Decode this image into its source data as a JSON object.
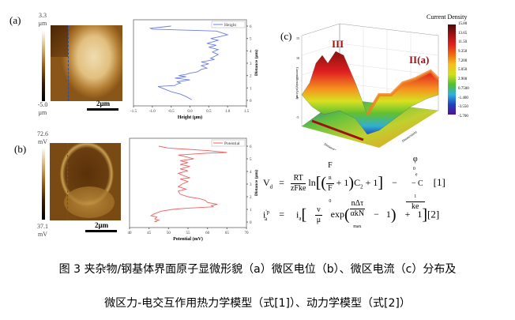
{
  "panel_a": {
    "label": "(a)",
    "cbar_max": "3.3",
    "cbar_min": "-5.0",
    "unit": "μm",
    "scale": "2μm",
    "profile_color": "#2b4fa8"
  },
  "panel_b": {
    "label": "(b)",
    "cbar_max": "72.6",
    "cbar_min": "37.1",
    "unit": "mV",
    "scale": "2μm",
    "profile_color": "#e02020"
  },
  "panel_c": {
    "label": "(c)",
    "title": "Current Density",
    "ylabel": "Current Density(nA/cm²)",
    "peak1": "III",
    "peak2": "II(a)",
    "cbar_ticks": [
      "15.80",
      "13.65",
      "11.50",
      "9.350",
      "7.200",
      "5.050",
      "2.900",
      "0.7500",
      "-1.400",
      "-3.550",
      "-5.700"
    ],
    "z_ticks": [
      "15",
      "10",
      "5",
      "0",
      "-5"
    ],
    "xlabel": "Distance(nm)",
    "ylabel2": "Distance(nm)"
  },
  "chart_data": [
    {
      "type": "line",
      "legend": "Height",
      "xlabel": "Height (μm)",
      "ylabel": "Distance (μm)",
      "xlim": [
        -1.5,
        1.5
      ],
      "ylim": [
        0,
        6
      ],
      "xticks": [
        "-1.5",
        "-1.0",
        "-0.5",
        "0.0",
        "0.5",
        "1.0",
        "1.5"
      ],
      "yticks": [
        "0",
        "1",
        "2",
        "3",
        "4",
        "5",
        "6"
      ],
      "color": "#6b7fe0",
      "points": [
        [
          -0.5,
          6
        ],
        [
          -1.05,
          5.82
        ],
        [
          -1.0,
          5.75
        ],
        [
          0.7,
          5.6
        ],
        [
          1.0,
          5.3
        ],
        [
          0.8,
          5.15
        ],
        [
          0.55,
          5.0
        ],
        [
          0.75,
          4.85
        ],
        [
          0.45,
          4.6
        ],
        [
          0.7,
          4.45
        ],
        [
          0.5,
          4.3
        ],
        [
          0.75,
          4.1
        ],
        [
          0.6,
          3.9
        ],
        [
          0.75,
          3.7
        ],
        [
          0.55,
          3.4
        ],
        [
          0.65,
          3.3
        ],
        [
          0.3,
          3.1
        ],
        [
          0.5,
          2.95
        ],
        [
          0.3,
          2.8
        ],
        [
          0.45,
          2.6
        ],
        [
          0.3,
          2.5
        ],
        [
          0.2,
          2.3
        ],
        [
          0.0,
          2.2
        ],
        [
          -0.1,
          2.1
        ],
        [
          -0.3,
          2.0
        ],
        [
          -0.1,
          1.9
        ],
        [
          -0.4,
          1.8
        ],
        [
          0.0,
          1.65
        ],
        [
          -0.35,
          1.5
        ],
        [
          -0.25,
          1.4
        ],
        [
          -0.35,
          1.3
        ],
        [
          -0.4,
          1.2
        ],
        [
          -0.85,
          1.12
        ],
        [
          -0.75,
          1.0
        ],
        [
          -0.5,
          0.7
        ],
        [
          -0.25,
          0.5
        ],
        [
          -0.1,
          0.3
        ],
        [
          0.05,
          0.05
        ]
      ]
    },
    {
      "type": "line",
      "legend": "Potential",
      "xlabel": "Potential (mV)",
      "ylabel": "Distance (μm)",
      "xlim": [
        40,
        70
      ],
      "ylim": [
        0,
        6
      ],
      "xticks": [
        "40",
        "45",
        "50",
        "55",
        "60",
        "65",
        "70"
      ],
      "yticks": [
        "0",
        "1",
        "2",
        "3",
        "4",
        "5",
        "6"
      ],
      "color": "#f06060",
      "points": [
        [
          47.5,
          6
        ],
        [
          50,
          5.85
        ],
        [
          55,
          5.75
        ],
        [
          60,
          5.65
        ],
        [
          65,
          5.5
        ],
        [
          60,
          5.45
        ],
        [
          52.5,
          5.3
        ],
        [
          54,
          5.2
        ],
        [
          56.5,
          5.0
        ],
        [
          53,
          4.85
        ],
        [
          55,
          4.7
        ],
        [
          53,
          4.55
        ],
        [
          55.5,
          4.4
        ],
        [
          53,
          4.2
        ],
        [
          55,
          4.05
        ],
        [
          52.5,
          3.85
        ],
        [
          54,
          3.65
        ],
        [
          55.5,
          3.5
        ],
        [
          53,
          3.4
        ],
        [
          55,
          3.2
        ],
        [
          53.5,
          3.0
        ],
        [
          52.5,
          2.8
        ],
        [
          54.5,
          2.6
        ],
        [
          52.5,
          2.45
        ],
        [
          53,
          2.2
        ],
        [
          55,
          2.0
        ],
        [
          58,
          1.85
        ],
        [
          59.5,
          1.7
        ],
        [
          60,
          1.55
        ],
        [
          62.5,
          1.4
        ],
        [
          61,
          1.3
        ],
        [
          61.5,
          1.2
        ],
        [
          55,
          1.1
        ],
        [
          51,
          1.0
        ],
        [
          48,
          0.85
        ],
        [
          46,
          0.6
        ],
        [
          45.5,
          0.5
        ],
        [
          47,
          0.4
        ],
        [
          46.5,
          0.25
        ],
        [
          47.5,
          0.15
        ],
        [
          46.5,
          0.05
        ],
        [
          47,
          0
        ]
      ]
    }
  ],
  "equations": {
    "eq1": {
      "lhs": "V",
      "lhs_sub": "d",
      "eq": "=",
      "f1_num": "RT",
      "f1_den": "zFke",
      "ln": "ln",
      "fr_num": "F",
      "fr_num_sub": "R",
      "fr_den": "F",
      "fr_den_sub": "0",
      "plus1": "+ 1",
      "c2": "C",
      "c2_sub": "2",
      "plus2": "+ 1",
      "minus": "−",
      "f3_num": "φ",
      "f3_sup": "0",
      "f3_sub": "e",
      "f3_rest": "  − C",
      "f3_rest_sub": "1",
      "f3_den": "ke",
      "tag": "[1]"
    },
    "eq2": {
      "lhs": "i",
      "lhs_sup": "'p",
      "lhs_sub": "a",
      "eq": "=",
      "ia": "i",
      "ia_sub": "a",
      "nu": "ν",
      "mu": "μ",
      "exp": "exp",
      "f_num": "nΔτ",
      "f_den": "αkN",
      "f_den_sub": "max",
      "minus1": "−   1",
      "plus1": "+   1",
      "tag": "[2]"
    }
  },
  "caption": {
    "line1": "图 3 夹杂物/钢基体界面原子显微形貌（a）微区电位（b）、微区电流（c）分布及",
    "line2": "微区力-电交互作用热力学模型（式[1]）、动力学模型（式[2]）"
  }
}
